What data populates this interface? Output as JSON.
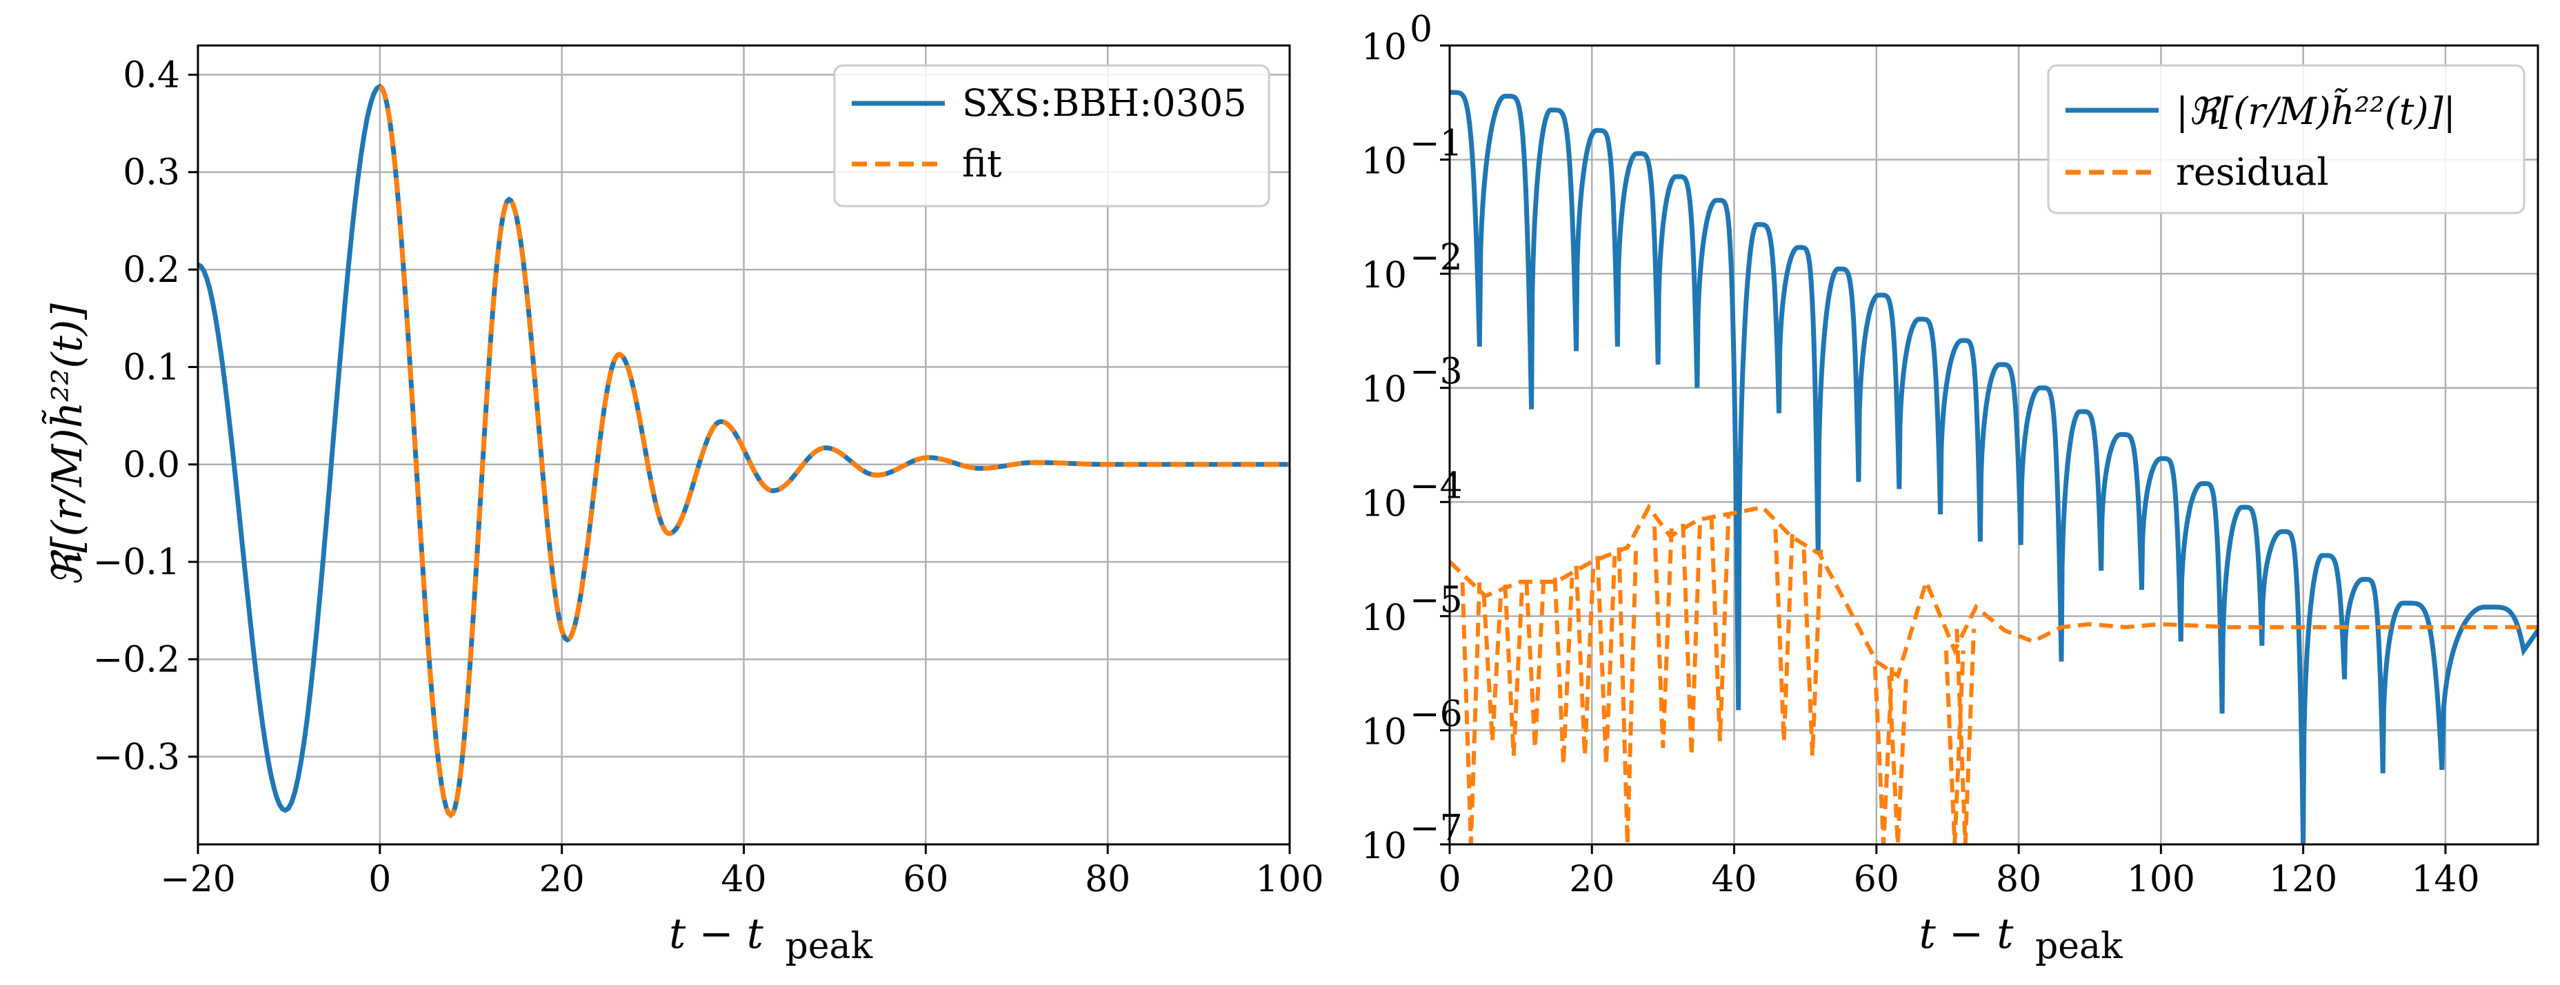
{
  "chart_data": [
    {
      "type": "line",
      "xlabel": "t − t",
      "xlabel_sub": "peak",
      "ylabel": "ℜ[(r/M)h̃²²(t)]",
      "xlim": [
        -20,
        100
      ],
      "ylim": [
        -0.39,
        0.43
      ],
      "grid": true,
      "legend_position": "top-right",
      "x_ticks": [
        -20,
        0,
        20,
        40,
        60,
        80,
        100
      ],
      "x_tick_labels": [
        "−20",
        "0",
        "20",
        "40",
        "60",
        "80",
        "100"
      ],
      "y_ticks": [
        -0.3,
        -0.2,
        -0.1,
        0.0,
        0.1,
        0.2,
        0.3,
        0.4
      ],
      "y_tick_labels": [
        "−0.3",
        "−0.2",
        "−0.1",
        "0.0",
        "0.1",
        "0.2",
        "0.3",
        "0.4"
      ],
      "series": [
        {
          "name": "SXS:BBH:0305",
          "color": "#1f77b4",
          "style": "solid",
          "x": [
            -20,
            -10.4,
            0,
            7.8,
            14.2,
            20.6,
            26.3,
            31.8,
            37.5,
            43.2,
            49,
            54.6,
            60.3,
            66,
            72,
            80,
            100
          ],
          "y": [
            0.205,
            -0.355,
            0.388,
            -0.36,
            0.272,
            -0.18,
            0.113,
            -0.071,
            0.044,
            -0.027,
            0.017,
            -0.011,
            0.007,
            -0.004,
            0.002,
            0.0,
            0.0
          ]
        },
        {
          "name": "fit",
          "color": "#ff7f0e",
          "style": "dashed",
          "x": [
            0,
            7.8,
            14.2,
            20.6,
            26.3,
            31.8,
            37.5,
            43.2,
            49,
            54.6,
            60.3,
            66,
            72,
            80,
            100
          ],
          "y": [
            0.388,
            -0.36,
            0.272,
            -0.18,
            0.113,
            -0.071,
            0.044,
            -0.027,
            0.017,
            -0.011,
            0.007,
            -0.004,
            0.002,
            0.0,
            0.0
          ]
        }
      ]
    },
    {
      "type": "line",
      "yscale": "log",
      "xlabel": "t − t",
      "xlabel_sub": "peak",
      "ylabel": "",
      "xlim": [
        0,
        153
      ],
      "ylim": [
        1e-07,
        1
      ],
      "grid": true,
      "legend_position": "top-right",
      "x_ticks": [
        0,
        20,
        40,
        60,
        80,
        100,
        120,
        140
      ],
      "x_tick_labels": [
        "0",
        "20",
        "40",
        "60",
        "80",
        "100",
        "120",
        "140"
      ],
      "y_tick_exponents": [
        0,
        -1,
        -2,
        -3,
        -4,
        -5,
        -6,
        -7
      ],
      "y_tick_base": "10",
      "series": [
        {
          "name": "|ℜ[(r/M)h̃²²(t)]|",
          "color": "#1f77b4",
          "style": "solid",
          "peaks_x": [
            0,
            7.8,
            14.2,
            20.6,
            26.3,
            31.8,
            37.5,
            43.2,
            49,
            54.6,
            60.3,
            66,
            72,
            77.3,
            83,
            88.6,
            94.3,
            100,
            105.8,
            111.4,
            117,
            122.7,
            128.4,
            134,
            145.5
          ],
          "peaks_y": [
            0.388,
            0.36,
            0.272,
            0.18,
            0.113,
            0.071,
            0.044,
            0.027,
            0.017,
            0.011,
            0.0065,
            0.004,
            0.0026,
            0.0016,
            0.001,
            0.00062,
            0.00039,
            0.00024,
            0.000145,
            9e-05,
            5.5e-05,
            3.4e-05,
            2.1e-05,
            1.3e-05,
            1.2e-05
          ],
          "zeros_x": [
            4.2,
            11.5,
            17.8,
            23.6,
            29.3,
            34.8,
            40.6,
            46.3,
            51.8,
            57.5,
            63.2,
            69,
            74.6,
            80.3,
            86,
            91.6,
            97.3,
            102.8,
            108.6,
            114.2,
            120,
            125.8,
            131.2,
            139.5,
            151
          ],
          "zeros_y": [
            0.0023,
            0.00065,
            0.0021,
            0.0023,
            0.0016,
            0.001,
            1.5e-06,
            0.0006,
            3.5e-05,
            0.00015,
            0.00013,
            7.8e-05,
            4.5e-05,
            4.2e-05,
            4e-06,
            2.5e-05,
            1.7e-05,
            6e-06,
            1.4e-06,
            5.5e-06,
            1e-07,
            2.8e-06,
            4.2e-07,
            4.5e-07,
            5e-06
          ]
        },
        {
          "name": "residual",
          "color": "#ff7f0e",
          "style": "dashed",
          "x": [
            0,
            5,
            10,
            15,
            20,
            25,
            28,
            31,
            35,
            40,
            44,
            48,
            52,
            56,
            60,
            63,
            67,
            71,
            74,
            78,
            82,
            86,
            90,
            95,
            100,
            110,
            120,
            130,
            140,
            153
          ],
          "y": [
            3e-05,
            1.5e-05,
            2e-05,
            2e-05,
            3e-05,
            4e-05,
            9e-05,
            5e-05,
            7e-05,
            8e-05,
            9e-05,
            5e-05,
            3.5e-05,
            1.2e-05,
            4e-06,
            3e-06,
            2e-05,
            5e-06,
            1.2e-05,
            7.5e-06,
            6e-06,
            8e-06,
            8.5e-06,
            8e-06,
            8.5e-06,
            8e-06,
            8e-06,
            8e-06,
            8e-06,
            8e-06
          ],
          "dips_x": [
            3,
            6,
            9,
            12,
            16,
            19,
            22,
            25,
            30,
            34,
            38,
            47,
            51,
            61,
            63,
            71,
            72.5
          ],
          "dips_y": [
            1e-07,
            8e-07,
            6e-07,
            7e-07,
            5e-07,
            6e-07,
            5e-07,
            1e-07,
            7e-07,
            6e-07,
            8e-07,
            8e-07,
            6e-07,
            1e-07,
            1e-07,
            1e-07,
            1e-07
          ]
        }
      ]
    }
  ]
}
